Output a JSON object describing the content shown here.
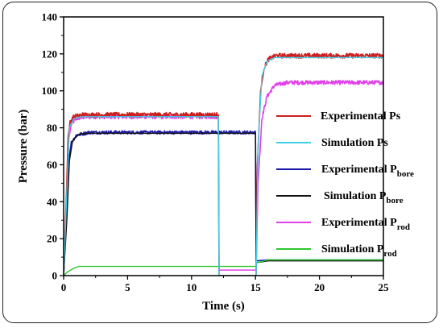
{
  "chart_data": {
    "type": "line",
    "xlabel": "Time (s)",
    "ylabel": "Pressure (bar)",
    "xlim": [
      0,
      25
    ],
    "ylim": [
      0,
      140
    ],
    "xticks": [
      0,
      5,
      10,
      15,
      20,
      25
    ],
    "yticks": [
      0,
      20,
      40,
      60,
      80,
      100,
      120,
      140
    ],
    "grid": false,
    "legend_position": "right",
    "series": [
      {
        "key": "exp_ps",
        "legend_main": "Experimental Ps",
        "legend_sub": "",
        "color": "#cc1f1f",
        "noise": 1.3,
        "points": [
          [
            0,
            0
          ],
          [
            0.2,
            40
          ],
          [
            0.35,
            75
          ],
          [
            0.5,
            83
          ],
          [
            0.8,
            86
          ],
          [
            1.5,
            87
          ],
          [
            12.1,
            87
          ],
          [
            12.15,
            0
          ],
          [
            15.05,
            0
          ],
          [
            15.15,
            60
          ],
          [
            15.4,
            100
          ],
          [
            15.7,
            113
          ],
          [
            16.0,
            117
          ],
          [
            16.6,
            119
          ],
          [
            25,
            119
          ]
        ]
      },
      {
        "key": "sim_ps",
        "legend_main": "Simulation Ps",
        "legend_sub": "",
        "color": "#3fcfe8",
        "noise": 0,
        "points": [
          [
            0,
            0
          ],
          [
            0.25,
            45
          ],
          [
            0.45,
            80
          ],
          [
            0.8,
            85
          ],
          [
            1.5,
            86
          ],
          [
            12.1,
            86
          ],
          [
            12.15,
            0
          ],
          [
            15.05,
            0
          ],
          [
            15.2,
            70
          ],
          [
            15.5,
            108
          ],
          [
            15.9,
            116
          ],
          [
            16.5,
            118
          ],
          [
            25,
            118
          ]
        ]
      },
      {
        "key": "exp_pbore",
        "legend_main": "Experimental P",
        "legend_sub": "bore",
        "color": "#1a1aa8",
        "noise": 0.9,
        "points": [
          [
            0,
            0
          ],
          [
            0.2,
            30
          ],
          [
            0.35,
            60
          ],
          [
            0.6,
            72
          ],
          [
            1.0,
            76
          ],
          [
            2.0,
            77.5
          ],
          [
            15,
            77.5
          ],
          [
            15.05,
            8
          ],
          [
            16,
            8.5
          ],
          [
            25,
            8.5
          ]
        ]
      },
      {
        "key": "sim_pbore",
        "legend_main": "Simulation P",
        "legend_sub": "bore",
        "color": "#111111",
        "noise": 0,
        "points": [
          [
            0,
            0
          ],
          [
            0.25,
            30
          ],
          [
            0.45,
            62
          ],
          [
            0.7,
            73
          ],
          [
            1.2,
            76.5
          ],
          [
            2.0,
            77
          ],
          [
            15,
            77
          ],
          [
            15.05,
            7
          ],
          [
            16,
            8
          ],
          [
            25,
            8
          ]
        ]
      },
      {
        "key": "exp_prod",
        "legend_main": "Experimental P",
        "legend_sub": "rod",
        "color": "#e040e8",
        "noise": 1.1,
        "points": [
          [
            0,
            0
          ],
          [
            0.25,
            40
          ],
          [
            0.4,
            74
          ],
          [
            0.6,
            82
          ],
          [
            1.0,
            85
          ],
          [
            1.8,
            86
          ],
          [
            12.1,
            86
          ],
          [
            12.15,
            3
          ],
          [
            15.05,
            3
          ],
          [
            15.2,
            50
          ],
          [
            15.5,
            85
          ],
          [
            15.9,
            97
          ],
          [
            16.5,
            103
          ],
          [
            17.5,
            104.5
          ],
          [
            25,
            104.5
          ]
        ]
      },
      {
        "key": "sim_prod",
        "legend_main": "Simulation P",
        "legend_sub": "rod",
        "color": "#2cc62c",
        "noise": 0,
        "points": [
          [
            0,
            0
          ],
          [
            0.3,
            2
          ],
          [
            0.8,
            4
          ],
          [
            1.2,
            5
          ],
          [
            15,
            5
          ],
          [
            15.1,
            7
          ],
          [
            16,
            8.5
          ],
          [
            25,
            8.5
          ]
        ]
      }
    ]
  }
}
